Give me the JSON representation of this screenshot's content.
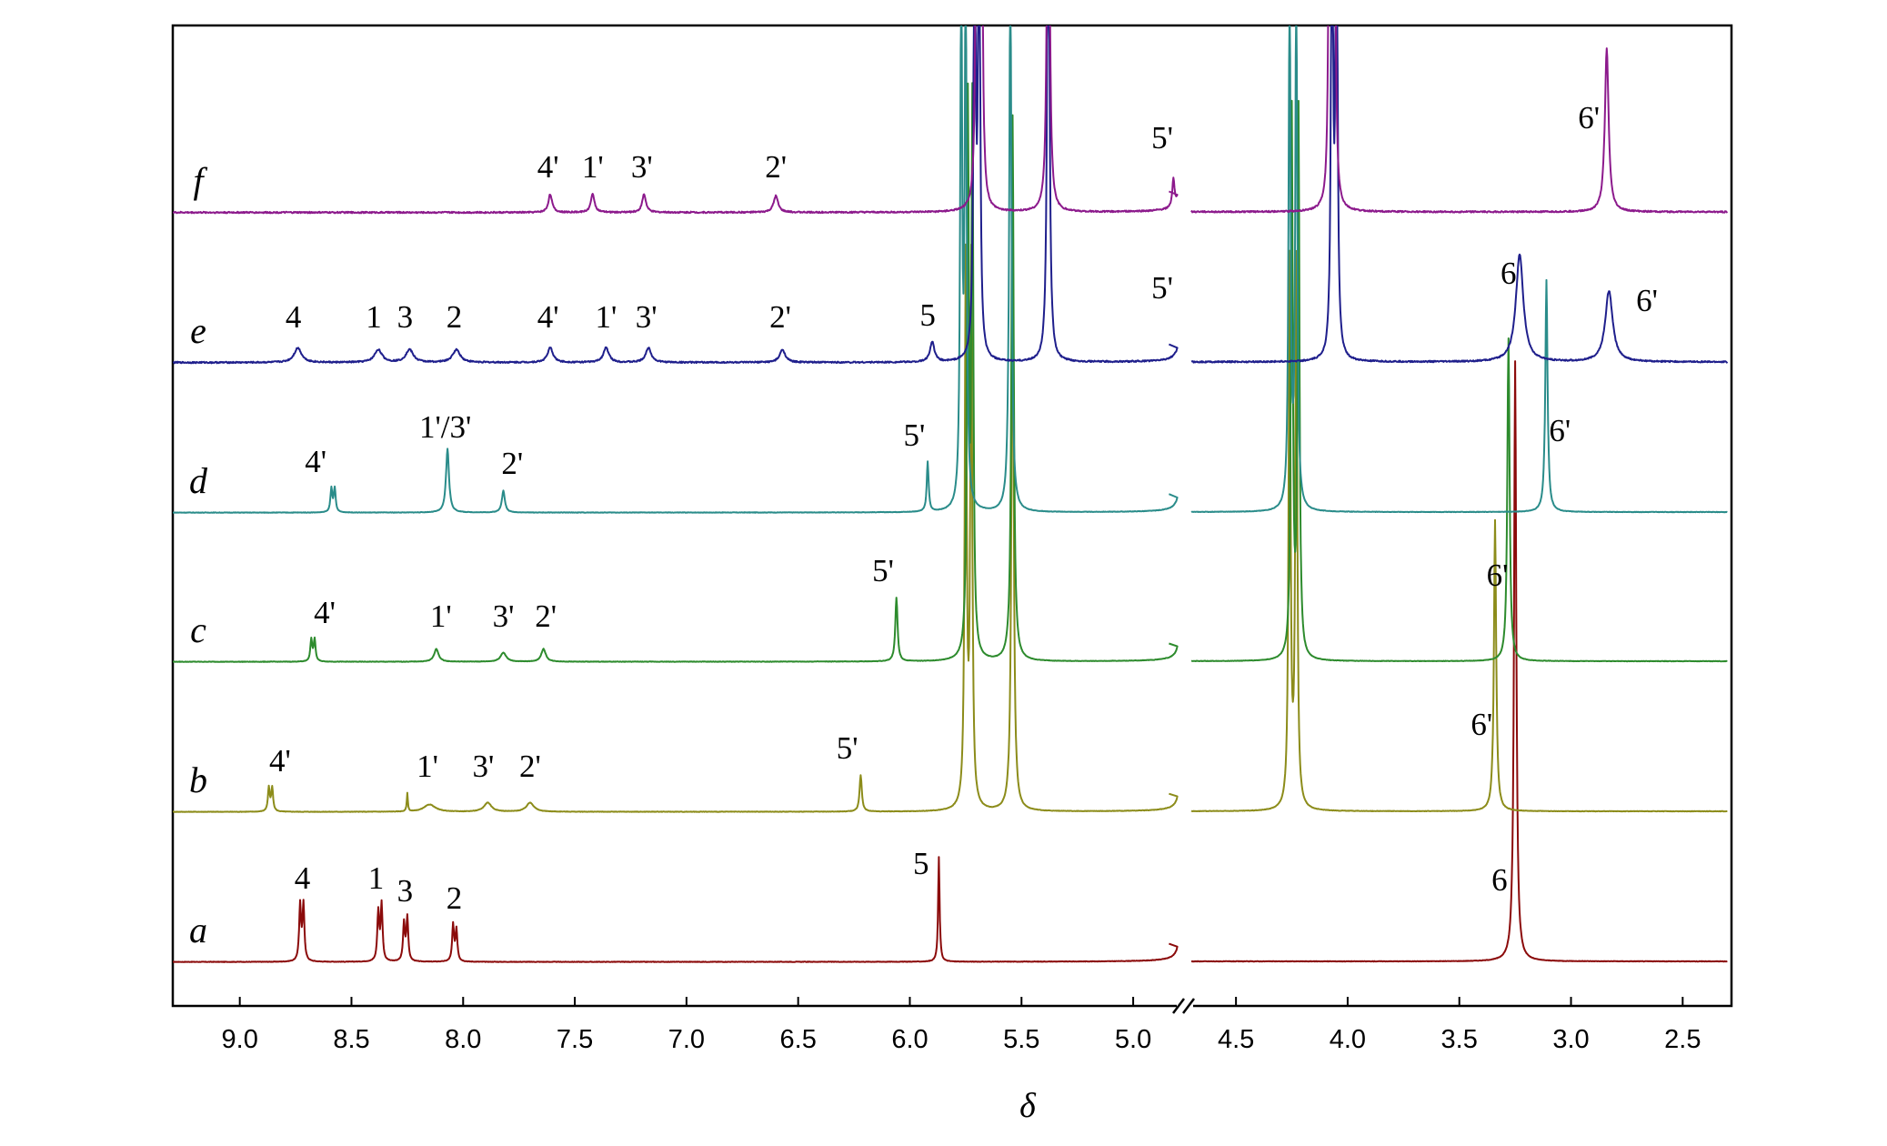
{
  "chart_data": {
    "type": "line",
    "xlabel": "δ",
    "x_reversed": true,
    "axis_break": {
      "from": 4.8,
      "to": 4.7,
      "mark": "//"
    },
    "x_segments": [
      {
        "xlim": [
          9.3,
          4.8
        ]
      },
      {
        "xlim": [
          4.7,
          2.3
        ]
      }
    ],
    "x_ticks": [
      9.0,
      8.5,
      8.0,
      7.5,
      7.0,
      6.5,
      6.0,
      5.5,
      5.0,
      4.5,
      4.0,
      3.5,
      3.0,
      2.5
    ],
    "x_tick_labels": [
      "9.0",
      "8.5",
      "8.0",
      "7.5",
      "7.0",
      "6.5",
      "6.0",
      "5.5",
      "5.0",
      "4.5",
      "4.0",
      "3.5",
      "3.0",
      "2.5"
    ],
    "series": [
      {
        "name": "a",
        "color": "#8b0a0a",
        "peaks": [
          {
            "x": 8.73,
            "h": 62,
            "w": 0.005
          },
          {
            "x": 8.715,
            "h": 62,
            "w": 0.005
          },
          {
            "x": 8.38,
            "h": 54,
            "w": 0.005
          },
          {
            "x": 8.365,
            "h": 62,
            "w": 0.005
          },
          {
            "x": 8.265,
            "h": 42,
            "w": 0.005
          },
          {
            "x": 8.25,
            "h": 48,
            "w": 0.005
          },
          {
            "x": 8.045,
            "h": 40,
            "w": 0.005
          },
          {
            "x": 8.03,
            "h": 35,
            "w": 0.005
          },
          {
            "x": 5.87,
            "h": 115,
            "w": 0.004
          },
          {
            "x": 3.25,
            "h": 660,
            "w": 0.006
          }
        ],
        "peak_labels": [
          {
            "text": "4",
            "x": 8.72
          },
          {
            "text": "1",
            "x": 8.39
          },
          {
            "text": "3",
            "x": 8.26
          },
          {
            "text": "2",
            "x": 8.04
          },
          {
            "text": "5",
            "x": 5.95
          },
          {
            "text": "6",
            "x": 3.32
          }
        ]
      },
      {
        "name": "b",
        "color": "#8c8c1a",
        "peaks": [
          {
            "x": 8.87,
            "h": 26,
            "w": 0.005
          },
          {
            "x": 8.855,
            "h": 26,
            "w": 0.005
          },
          {
            "x": 8.25,
            "h": 20,
            "w": 0.003
          },
          {
            "x": 8.15,
            "h": 8,
            "w": 0.03
          },
          {
            "x": 7.89,
            "h": 10,
            "w": 0.02
          },
          {
            "x": 7.7,
            "h": 10,
            "w": 0.02
          },
          {
            "x": 6.22,
            "h": 40,
            "w": 0.006
          },
          {
            "x": 5.75,
            "h": 600,
            "w": 0.005
          },
          {
            "x": 5.725,
            "h": 600,
            "w": 0.005
          },
          {
            "x": 5.54,
            "h": 600,
            "w": 0.006
          },
          {
            "x": 4.26,
            "h": 600,
            "w": 0.005
          },
          {
            "x": 4.23,
            "h": 600,
            "w": 0.005
          },
          {
            "x": 3.34,
            "h": 320,
            "w": 0.006
          }
        ],
        "peak_labels": [
          {
            "text": "4'",
            "x": 8.82
          },
          {
            "text": "1'",
            "x": 8.16
          },
          {
            "text": "3'",
            "x": 7.91
          },
          {
            "text": "2'",
            "x": 7.7
          },
          {
            "text": "5'",
            "x": 6.28
          },
          {
            "text": "6'",
            "x": 3.4
          }
        ]
      },
      {
        "name": "c",
        "color": "#2d8b2d",
        "peaks": [
          {
            "x": 8.68,
            "h": 24,
            "w": 0.005
          },
          {
            "x": 8.665,
            "h": 24,
            "w": 0.005
          },
          {
            "x": 8.12,
            "h": 14,
            "w": 0.012
          },
          {
            "x": 7.82,
            "h": 10,
            "w": 0.015
          },
          {
            "x": 7.64,
            "h": 14,
            "w": 0.012
          },
          {
            "x": 6.06,
            "h": 70,
            "w": 0.006
          },
          {
            "x": 5.74,
            "h": 600,
            "w": 0.005
          },
          {
            "x": 5.72,
            "h": 600,
            "w": 0.005
          },
          {
            "x": 5.54,
            "h": 600,
            "w": 0.006
          },
          {
            "x": 4.25,
            "h": 600,
            "w": 0.005
          },
          {
            "x": 4.22,
            "h": 600,
            "w": 0.005
          },
          {
            "x": 3.28,
            "h": 355,
            "w": 0.006
          }
        ],
        "peak_labels": [
          {
            "text": "4'",
            "x": 8.62
          },
          {
            "text": "1'",
            "x": 8.1
          },
          {
            "text": "3'",
            "x": 7.82
          },
          {
            "text": "2'",
            "x": 7.63
          },
          {
            "text": "5'",
            "x": 6.12
          },
          {
            "text": "6'",
            "x": 3.33
          }
        ]
      },
      {
        "name": "d",
        "color": "#2a8c8a",
        "peaks": [
          {
            "x": 8.59,
            "h": 26,
            "w": 0.005
          },
          {
            "x": 8.575,
            "h": 26,
            "w": 0.005
          },
          {
            "x": 8.07,
            "h": 70,
            "w": 0.008
          },
          {
            "x": 7.82,
            "h": 24,
            "w": 0.008
          },
          {
            "x": 5.92,
            "h": 55,
            "w": 0.005
          },
          {
            "x": 5.77,
            "h": 600,
            "w": 0.005
          },
          {
            "x": 5.75,
            "h": 600,
            "w": 0.005
          },
          {
            "x": 5.55,
            "h": 600,
            "w": 0.006
          },
          {
            "x": 4.26,
            "h": 600,
            "w": 0.005
          },
          {
            "x": 4.23,
            "h": 600,
            "w": 0.005
          },
          {
            "x": 3.11,
            "h": 255,
            "w": 0.006
          }
        ],
        "peak_labels": [
          {
            "text": "4'",
            "x": 8.66
          },
          {
            "text": "1'/3'",
            "x": 8.08
          },
          {
            "text": "2'",
            "x": 7.78
          },
          {
            "text": "5'",
            "x": 5.98
          },
          {
            "text": "6'",
            "x": 3.05
          }
        ]
      },
      {
        "name": "e",
        "color": "#1f1f8c",
        "peaks": [
          {
            "x": 8.74,
            "h": 16,
            "w": 0.02
          },
          {
            "x": 8.38,
            "h": 14,
            "w": 0.02
          },
          {
            "x": 8.24,
            "h": 14,
            "w": 0.02
          },
          {
            "x": 8.03,
            "h": 14,
            "w": 0.02
          },
          {
            "x": 7.61,
            "h": 16,
            "w": 0.015
          },
          {
            "x": 7.36,
            "h": 16,
            "w": 0.015
          },
          {
            "x": 7.17,
            "h": 16,
            "w": 0.015
          },
          {
            "x": 6.57,
            "h": 14,
            "w": 0.015
          },
          {
            "x": 5.9,
            "h": 22,
            "w": 0.012
          },
          {
            "x": 5.71,
            "h": 600,
            "w": 0.005
          },
          {
            "x": 5.69,
            "h": 600,
            "w": 0.005
          },
          {
            "x": 5.38,
            "h": 600,
            "w": 0.006
          },
          {
            "x": 4.07,
            "h": 600,
            "w": 0.005
          },
          {
            "x": 4.05,
            "h": 600,
            "w": 0.005
          },
          {
            "x": 3.23,
            "h": 118,
            "w": 0.02
          },
          {
            "x": 2.83,
            "h": 78,
            "w": 0.02
          }
        ],
        "peak_labels": [
          {
            "text": "4",
            "x": 8.76
          },
          {
            "text": "1",
            "x": 8.4
          },
          {
            "text": "3",
            "x": 8.26
          },
          {
            "text": "2",
            "x": 8.04
          },
          {
            "text": "4'",
            "x": 7.62
          },
          {
            "text": "1'",
            "x": 7.36
          },
          {
            "text": "3'",
            "x": 7.18
          },
          {
            "text": "2'",
            "x": 6.58
          },
          {
            "text": "5",
            "x": 5.92
          },
          {
            "text": "5'",
            "x": 4.87
          },
          {
            "text": "6",
            "x": 3.28
          },
          {
            "text": "6'",
            "x": 2.66
          }
        ]
      },
      {
        "name": "f",
        "color": "#8c1a8c",
        "peaks": [
          {
            "x": 7.61,
            "h": 20,
            "w": 0.01
          },
          {
            "x": 7.42,
            "h": 20,
            "w": 0.01
          },
          {
            "x": 7.19,
            "h": 20,
            "w": 0.01
          },
          {
            "x": 6.6,
            "h": 18,
            "w": 0.012
          },
          {
            "x": 5.7,
            "h": 600,
            "w": 0.005
          },
          {
            "x": 5.68,
            "h": 600,
            "w": 0.005
          },
          {
            "x": 5.38,
            "h": 600,
            "w": 0.006
          },
          {
            "x": 4.82,
            "h": 30,
            "w": 0.006
          },
          {
            "x": 4.08,
            "h": 600,
            "w": 0.005
          },
          {
            "x": 4.06,
            "h": 600,
            "w": 0.005
          },
          {
            "x": 2.84,
            "h": 180,
            "w": 0.01
          }
        ],
        "peak_labels": [
          {
            "text": "4'",
            "x": 7.62
          },
          {
            "text": "1'",
            "x": 7.42
          },
          {
            "text": "3'",
            "x": 7.2
          },
          {
            "text": "2'",
            "x": 6.6
          },
          {
            "text": "5'",
            "x": 4.87
          },
          {
            "text": "6'",
            "x": 2.92
          }
        ]
      }
    ]
  }
}
